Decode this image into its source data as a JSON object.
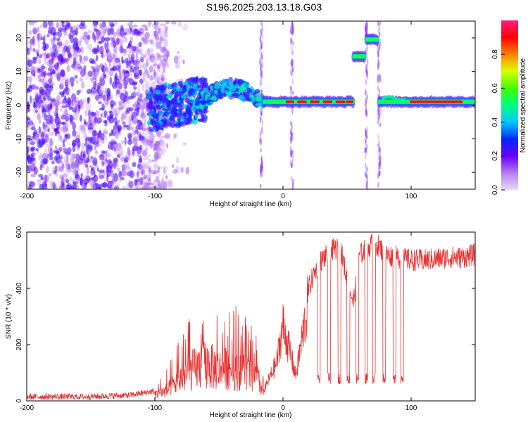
{
  "title": "S196.2025.203.13.18.G03",
  "chart_data": [
    {
      "type": "heatmap",
      "xlabel": "Height of straight line (km)",
      "ylabel": "Frequency (Hz)",
      "xlim": [
        -200,
        150
      ],
      "ylim": [
        -25,
        25
      ],
      "xticks": [
        -200,
        -100,
        0,
        100
      ],
      "yticks": [
        -20,
        -10,
        0,
        10,
        20
      ],
      "colorbar": {
        "label": "Normalized spectral amplitude",
        "range": [
          0,
          1
        ],
        "ticks": [
          0.0,
          0.2,
          0.4,
          0.6,
          0.8
        ]
      },
      "features": [
        {
          "x_range": [
            -200,
            -100
          ],
          "f_range": [
            -25,
            25
          ],
          "amplitude": 0.1,
          "kind": "noise"
        },
        {
          "x_range": [
            -105,
            -60
          ],
          "f_range": [
            -8,
            5
          ],
          "amplitude": 0.3,
          "kind": "noisy-carrier"
        },
        {
          "x_range": [
            -65,
            -15
          ],
          "f_center": [
            1,
            6
          ],
          "amplitude": 0.4,
          "kind": "carrier"
        },
        {
          "x_range": [
            -15,
            55
          ],
          "f_center": 1,
          "amplitude": 0.9,
          "kind": "carrier"
        },
        {
          "x_range": [
            55,
            65
          ],
          "f_center": 15,
          "amplitude": 0.5,
          "kind": "carrier"
        },
        {
          "x_range": [
            65,
            75
          ],
          "f_center": 19.5,
          "amplitude": 0.5,
          "kind": "carrier"
        },
        {
          "x_range": [
            75,
            150
          ],
          "f_center": 1,
          "amplitude": 0.9,
          "kind": "carrier"
        }
      ]
    },
    {
      "type": "line",
      "xlabel": "Height of straight line (km)",
      "ylabel": "SNR (10 * v/v)",
      "xlim": [
        -200,
        150
      ],
      "ylim": [
        0,
        600
      ],
      "xticks": [
        -200,
        -100,
        0,
        100
      ],
      "yticks": [
        0,
        200,
        400,
        600
      ],
      "color": "#e83232",
      "series": [
        {
          "x": [
            -200,
            -150,
            -120,
            -100,
            -90,
            -80,
            -70,
            -60,
            -50,
            -40,
            -30,
            -20,
            -15,
            -5,
            0,
            5,
            10,
            15,
            20,
            25,
            30,
            35,
            40,
            45,
            50,
            55,
            60,
            65,
            70,
            75,
            80,
            90,
            100,
            110,
            120,
            130,
            140,
            150
          ],
          "y": [
            15,
            15,
            20,
            35,
            60,
            120,
            170,
            200,
            170,
            180,
            160,
            120,
            40,
            150,
            300,
            200,
            100,
            250,
            400,
            460,
            500,
            520,
            540,
            540,
            430,
            350,
            520,
            540,
            560,
            550,
            520,
            510,
            500,
            500,
            505,
            510,
            510,
            520
          ]
        }
      ]
    }
  ]
}
